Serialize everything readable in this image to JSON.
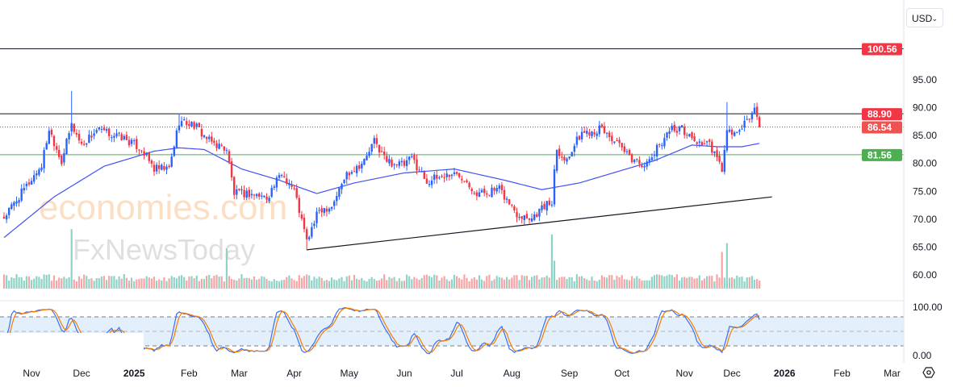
{
  "currency_button": {
    "label": "USD",
    "icon": "chevron-down-icon"
  },
  "watermark": {
    "line1": "economies.com",
    "line2": "FxNewsToday"
  },
  "colors": {
    "up": "#2962ff",
    "down": "#f23645",
    "vol_up": "#8fd3c7",
    "vol_down": "#f5a5a5",
    "ma": "#3f51f5",
    "k": "#3b6ff0",
    "d": "#f57c00",
    "green": "#4caf50",
    "red": "#f23645"
  },
  "chart_data": {
    "type": "candlestick",
    "title": "",
    "price_axis": {
      "ticks": [
        "95.00",
        "90.00",
        "85.00",
        "80.00",
        "75.00",
        "70.00",
        "65.00",
        "60.00"
      ],
      "ylim": [
        56,
        104
      ]
    },
    "oscillator_axis": {
      "ticks": [
        "100.00",
        "0.00"
      ],
      "levels": [
        80,
        20
      ]
    },
    "time_axis": [
      {
        "label": "Nov",
        "t": 11,
        "bold": false
      },
      {
        "label": "Dec",
        "t": 31,
        "bold": false
      },
      {
        "label": "2025",
        "t": 52,
        "bold": true
      },
      {
        "label": "Feb",
        "t": 74,
        "bold": false
      },
      {
        "label": "Mar",
        "t": 94,
        "bold": false
      },
      {
        "label": "Apr",
        "t": 116,
        "bold": false
      },
      {
        "label": "May",
        "t": 138,
        "bold": false
      },
      {
        "label": "Jun",
        "t": 160,
        "bold": false
      },
      {
        "label": "Jul",
        "t": 181,
        "bold": false
      },
      {
        "label": "Aug",
        "t": 203,
        "bold": false
      },
      {
        "label": "Sep",
        "t": 226,
        "bold": false
      },
      {
        "label": "Oct",
        "t": 247,
        "bold": false
      },
      {
        "label": "Nov",
        "t": 272,
        "bold": false
      },
      {
        "label": "Dec",
        "t": 291,
        "bold": false
      },
      {
        "label": "2026",
        "t": 312,
        "bold": true
      },
      {
        "label": "Feb",
        "t": 335,
        "bold": false
      },
      {
        "label": "Mar",
        "t": 355,
        "bold": false
      }
    ],
    "close_keyframes": [
      [
        0,
        70.3
      ],
      [
        8,
        75.3
      ],
      [
        15,
        79.7
      ],
      [
        18,
        86.2
      ],
      [
        23,
        80.4
      ],
      [
        27,
        87
      ],
      [
        31,
        83.3
      ],
      [
        37,
        86
      ],
      [
        47,
        84.7
      ],
      [
        55,
        82.6
      ],
      [
        60,
        79
      ],
      [
        66,
        79
      ],
      [
        70,
        87.6
      ],
      [
        76,
        86.9
      ],
      [
        82,
        84
      ],
      [
        89,
        82.6
      ],
      [
        92,
        74.6
      ],
      [
        98,
        74.6
      ],
      [
        105,
        73.9
      ],
      [
        111,
        78.2
      ],
      [
        116,
        75.3
      ],
      [
        121,
        66
      ],
      [
        126,
        71.7
      ],
      [
        131,
        72.4
      ],
      [
        137,
        78.2
      ],
      [
        144,
        80.4
      ],
      [
        148,
        84
      ],
      [
        153,
        80.4
      ],
      [
        160,
        79.7
      ],
      [
        163,
        81
      ],
      [
        169,
        76.8
      ],
      [
        179,
        78.2
      ],
      [
        184,
        77.5
      ],
      [
        189,
        74.6
      ],
      [
        198,
        75.3
      ],
      [
        205,
        71
      ],
      [
        211,
        70.3
      ],
      [
        216,
        72.4
      ],
      [
        219,
        73
      ],
      [
        220,
        79
      ],
      [
        221,
        83
      ],
      [
        224,
        80.4
      ],
      [
        231,
        85.5
      ],
      [
        239,
        86.2
      ],
      [
        244,
        84
      ],
      [
        250,
        81
      ],
      [
        257,
        79.7
      ],
      [
        261,
        82.6
      ],
      [
        266,
        86.2
      ],
      [
        271,
        86.2
      ],
      [
        276,
        84
      ],
      [
        282,
        83.3
      ],
      [
        287,
        79
      ],
      [
        289,
        85.5
      ],
      [
        294,
        85.5
      ],
      [
        297,
        87.6
      ],
      [
        300,
        89.8
      ],
      [
        302,
        86.54
      ]
    ],
    "ma_keyframes": [
      [
        0,
        66.7
      ],
      [
        20,
        74
      ],
      [
        40,
        79.5
      ],
      [
        60,
        82.2
      ],
      [
        70,
        82.8
      ],
      [
        80,
        82.5
      ],
      [
        95,
        79
      ],
      [
        110,
        77
      ],
      [
        125,
        74.6
      ],
      [
        140,
        76.5
      ],
      [
        160,
        78.3
      ],
      [
        180,
        79
      ],
      [
        200,
        77
      ],
      [
        215,
        75.3
      ],
      [
        230,
        76.5
      ],
      [
        245,
        78.5
      ],
      [
        260,
        80.5
      ],
      [
        275,
        83.3
      ],
      [
        285,
        83
      ],
      [
        295,
        83
      ],
      [
        302,
        83.6
      ]
    ],
    "special_wicks": [
      {
        "t": 27,
        "high": 93
      },
      {
        "t": 70,
        "high": 89
      },
      {
        "t": 121,
        "low": 64.5
      },
      {
        "t": 289,
        "high": 91
      }
    ],
    "volume_spikes": [
      {
        "t": 27,
        "rel": 3.4
      },
      {
        "t": 89,
        "rel": 2.3
      },
      {
        "t": 219,
        "rel": 3.1
      },
      {
        "t": 220,
        "rel": 1.6
      },
      {
        "t": 287,
        "rel": 2.1
      },
      {
        "t": 289,
        "rel": 2.6
      }
    ],
    "horizontal_levels": [
      {
        "price": 100.56,
        "label": "100.56",
        "style": "solid",
        "line": "#131722",
        "tag": "#f23645"
      },
      {
        "price": 88.9,
        "label": "88.90",
        "style": "solid",
        "line": "#131722",
        "tag": "#f23645"
      },
      {
        "price": 86.54,
        "label": "86.54",
        "style": "dotted",
        "line": "#f23645",
        "tag": "#ef5350"
      },
      {
        "price": 81.56,
        "label": "81.56",
        "style": "solid",
        "line": "#4caf50",
        "tag": "#4caf50"
      }
    ],
    "trendline": {
      "from": [
        121,
        64.5
      ],
      "to": [
        307,
        74
      ]
    }
  }
}
